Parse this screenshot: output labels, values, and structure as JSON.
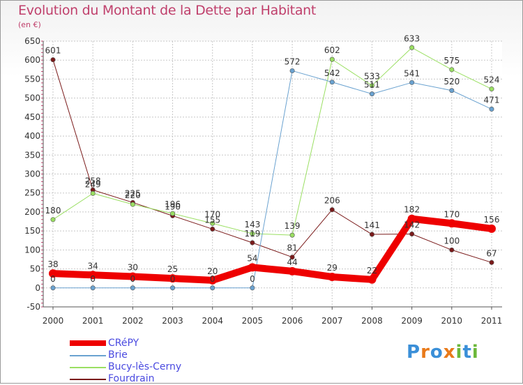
{
  "title": "Evolution du Montant de la Dette par Habitant",
  "unit": "(en €)",
  "logo": {
    "text": "Proxiti",
    "letters": [
      "P",
      "r",
      "o",
      "x",
      "i",
      "t",
      "i"
    ],
    "colors": [
      "#3a8fd8",
      "#e97a1a",
      "#3a8fd8",
      "#e97a1a",
      "#6cb83a",
      "#3a8fd8",
      "#6cb83a"
    ]
  },
  "chart_data": {
    "type": "line",
    "x": [
      "2000",
      "2001",
      "2002",
      "2003",
      "2004",
      "2005",
      "2006",
      "2007",
      "2008",
      "2009",
      "2010",
      "2011"
    ],
    "yticks": [
      "650",
      "600",
      "550",
      "500",
      "450",
      "400",
      "350",
      "300",
      "250",
      "200",
      "150",
      "100",
      "50",
      "0",
      "-50"
    ],
    "ylim": [
      -50,
      650
    ],
    "grid": true,
    "legend_position": "bottom-left",
    "series": [
      {
        "name": "Fourdrain",
        "color": "#7a1a1a",
        "lw": 1,
        "values": [
          601,
          258,
          225,
          190,
          155,
          119,
          81,
          206,
          141,
          142,
          100,
          67
        ]
      },
      {
        "name": "Bucy-lès-Cerny",
        "color": "#9adf62",
        "lw": 1,
        "values": [
          180,
          249,
          220,
          196,
          170,
          143,
          139,
          602,
          533,
          633,
          575,
          524
        ]
      },
      {
        "name": "Brie",
        "color": "#6aa2d0",
        "lw": 1,
        "values": [
          0,
          0,
          0,
          0,
          0,
          0,
          572,
          542,
          511,
          541,
          520,
          471
        ]
      },
      {
        "name": "CRéPY",
        "color": "#ee0000",
        "lw": 10,
        "values": [
          38,
          34,
          30,
          25,
          20,
          54,
          44,
          29,
          22,
          182,
          170,
          156
        ]
      }
    ],
    "legend": [
      "CRéPY",
      "Brie",
      "Bucy-lès-Cerny",
      "Fourdrain"
    ]
  }
}
